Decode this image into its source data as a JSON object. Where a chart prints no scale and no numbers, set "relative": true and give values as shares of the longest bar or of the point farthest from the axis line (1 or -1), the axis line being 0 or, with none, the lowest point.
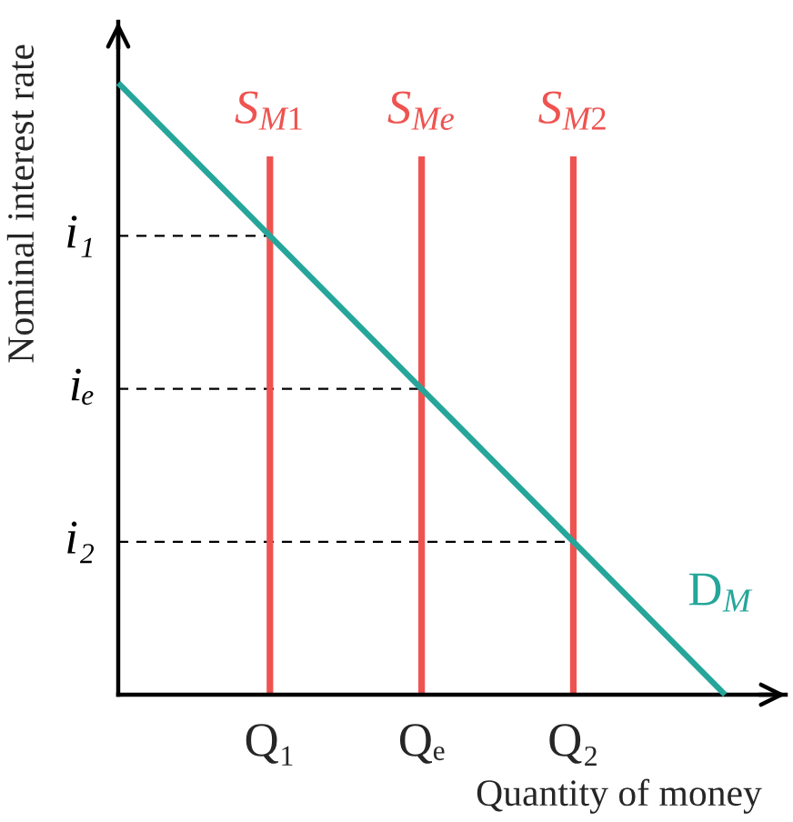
{
  "chart_data": {
    "type": "line",
    "relative": true,
    "xlabel": "Quantity of money",
    "ylabel": "Nominal interest rate",
    "categories": [
      null,
      "Q₁",
      "Qₑ",
      "Q₂",
      null
    ],
    "series": [
      {
        "name": "D$_{M}$",
        "color": "#26a69a",
        "values": [
          1,
          0.75,
          0.5,
          0.25,
          0
        ]
      }
    ],
    "ref_lines": [
      {
        "axis": "x",
        "value": "Q₁",
        "label": "S$_{M1}$",
        "color": "#ef5350",
        "line_style": "solid"
      },
      {
        "axis": "x",
        "value": "Qₑ",
        "label": "S$_{Me}$",
        "color": "#ef5350",
        "line_style": "solid"
      },
      {
        "axis": "x",
        "value": "Q₂",
        "label": "S$_{M2}$",
        "color": "#ef5350",
        "line_style": "solid"
      },
      {
        "axis": "y",
        "value": 0.75,
        "label": "i₁",
        "color": "#000000",
        "line_style": "dashed"
      },
      {
        "axis": "y",
        "value": 0.5,
        "label": "iₑ",
        "color": "#000000",
        "line_style": "dashed"
      },
      {
        "axis": "y",
        "value": 0.25,
        "label": "i₂",
        "color": "#000000",
        "line_style": "dashed"
      }
    ]
  }
}
